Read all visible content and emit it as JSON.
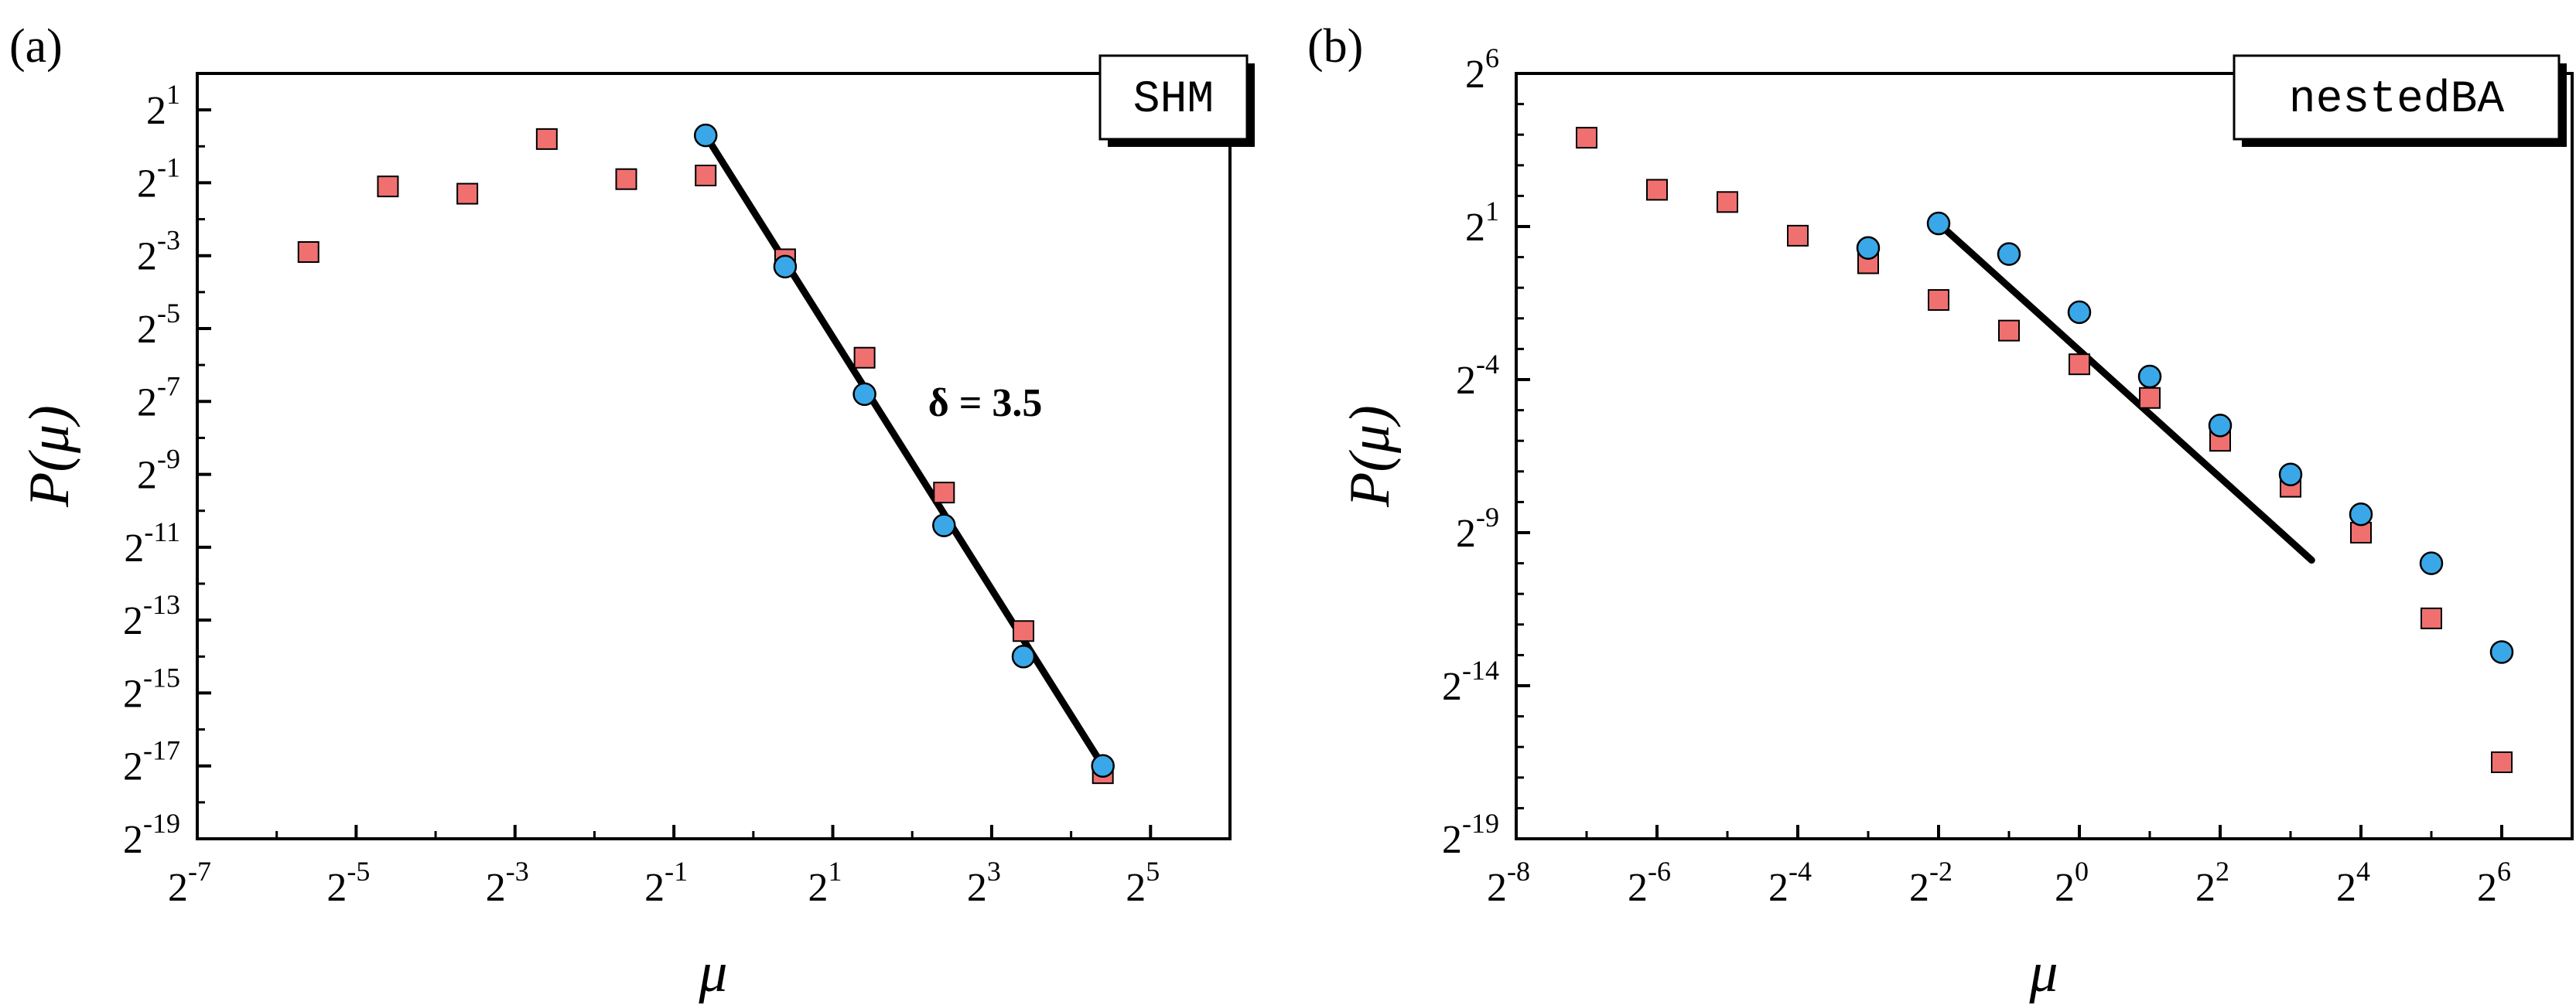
{
  "chart_data": [
    {
      "panel_label": "(a)",
      "type": "scatter",
      "title": "SHM",
      "xlabel": "μ",
      "ylabel": "P(μ)",
      "scale": "log2",
      "x_exp_range": [
        -7,
        6
      ],
      "y_exp_range": [
        -19,
        2
      ],
      "x_ticks": [
        {
          "base": "2",
          "exp": "-7"
        },
        {
          "base": "2",
          "exp": "-5"
        },
        {
          "base": "2",
          "exp": "-3"
        },
        {
          "base": "2",
          "exp": "-1"
        },
        {
          "base": "2",
          "exp": "1"
        },
        {
          "base": "2",
          "exp": "3"
        },
        {
          "base": "2",
          "exp": "5"
        }
      ],
      "y_ticks": [
        {
          "base": "2",
          "exp": "1"
        },
        {
          "base": "2",
          "exp": "-1"
        },
        {
          "base": "2",
          "exp": "-3"
        },
        {
          "base": "2",
          "exp": "-5"
        },
        {
          "base": "2",
          "exp": "-7"
        },
        {
          "base": "2",
          "exp": "-9"
        },
        {
          "base": "2",
          "exp": "-11"
        },
        {
          "base": "2",
          "exp": "-13"
        },
        {
          "base": "2",
          "exp": "-15"
        },
        {
          "base": "2",
          "exp": "-17"
        },
        {
          "base": "2",
          "exp": "-19"
        }
      ],
      "series": [
        {
          "name": "squares",
          "marker": "square",
          "color": "#f07070",
          "points": [
            [
              -5.6,
              -2.9
            ],
            [
              -4.6,
              -1.1
            ],
            [
              -3.6,
              -1.3
            ],
            [
              -2.6,
              0.2
            ],
            [
              -1.6,
              -0.9
            ],
            [
              -0.6,
              -0.8
            ],
            [
              0.4,
              -3.1
            ],
            [
              1.4,
              -5.8
            ],
            [
              2.4,
              -9.5
            ],
            [
              3.4,
              -13.3
            ],
            [
              4.4,
              -17.2
            ]
          ]
        },
        {
          "name": "circles",
          "marker": "circle",
          "color": "#3aa8e8",
          "points": [
            [
              -0.6,
              0.3
            ],
            [
              0.4,
              -3.3
            ],
            [
              1.4,
              -6.8
            ],
            [
              2.4,
              -10.4
            ],
            [
              3.4,
              -14.0
            ],
            [
              4.4,
              -17.0
            ]
          ]
        }
      ],
      "fit_line": {
        "from": [
          -0.6,
          0.3
        ],
        "to": [
          4.4,
          -17.0
        ],
        "color": "#000000"
      },
      "annotation": "δ = 3.5",
      "annotation_pos_data": [
        2.2,
        -7.4
      ]
    },
    {
      "panel_label": "(b)",
      "type": "scatter",
      "title": "nestedBA",
      "xlabel": "μ",
      "ylabel": "P(μ)",
      "scale": "log2",
      "x_exp_range": [
        -8,
        7
      ],
      "y_exp_range": [
        -19,
        6
      ],
      "x_ticks": [
        {
          "base": "2",
          "exp": "-8"
        },
        {
          "base": "2",
          "exp": "-6"
        },
        {
          "base": "2",
          "exp": "-4"
        },
        {
          "base": "2",
          "exp": "-2"
        },
        {
          "base": "2",
          "exp": "0"
        },
        {
          "base": "2",
          "exp": "2"
        },
        {
          "base": "2",
          "exp": "4"
        },
        {
          "base": "2",
          "exp": "6"
        }
      ],
      "y_ticks": [
        {
          "base": "2",
          "exp": "6"
        },
        {
          "base": "2",
          "exp": "1"
        },
        {
          "base": "2",
          "exp": "-4"
        },
        {
          "base": "2",
          "exp": "-9"
        },
        {
          "base": "2",
          "exp": "-14"
        },
        {
          "base": "2",
          "exp": "-19"
        }
      ],
      "series": [
        {
          "name": "squares",
          "marker": "square",
          "color": "#f07070",
          "points": [
            [
              -7.0,
              3.9
            ],
            [
              -6.0,
              2.2
            ],
            [
              -5.0,
              1.8
            ],
            [
              -4.0,
              0.7
            ],
            [
              -3.0,
              -0.2
            ],
            [
              -2.0,
              -1.4
            ],
            [
              -1.0,
              -2.4
            ],
            [
              0.0,
              -3.5
            ],
            [
              1.0,
              -4.6
            ],
            [
              2.0,
              -6.0
            ],
            [
              3.0,
              -7.5
            ],
            [
              4.0,
              -9.0
            ],
            [
              5.0,
              -11.8
            ],
            [
              6.0,
              -16.5
            ]
          ]
        },
        {
          "name": "circles",
          "marker": "circle",
          "color": "#3aa8e8",
          "points": [
            [
              -3.0,
              0.3
            ],
            [
              -2.0,
              1.1
            ],
            [
              -1.0,
              0.1
            ],
            [
              0.0,
              -1.8
            ],
            [
              1.0,
              -3.9
            ],
            [
              2.0,
              -5.5
            ],
            [
              3.0,
              -7.1
            ],
            [
              4.0,
              -8.4
            ],
            [
              5.0,
              -10.0
            ],
            [
              6.0,
              -12.9
            ]
          ]
        }
      ],
      "fit_line": {
        "from": [
          -2.0,
          1.1
        ],
        "to": [
          3.3,
          -9.9
        ],
        "color": "#000000"
      }
    }
  ]
}
